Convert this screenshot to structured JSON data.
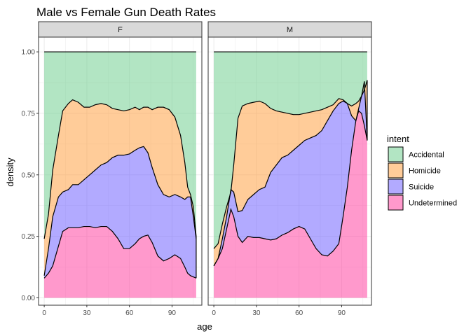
{
  "chart_data": {
    "type": "area",
    "subtype": "filled-density-stacked",
    "title": "Male vs Female Gun Death Rates",
    "xlabel": "age",
    "ylabel": "density",
    "xlim": [
      -4,
      111
    ],
    "ylim": [
      -0.03,
      1.06
    ],
    "x_ticks": [
      0,
      30,
      60,
      90
    ],
    "y_ticks": [
      0,
      0.25,
      0.5,
      0.75,
      1.0
    ],
    "x_tick_labels": [
      "0",
      "30",
      "60",
      "90"
    ],
    "y_tick_labels": [
      "0.00",
      "0.25",
      "0.50",
      "0.75",
      "1.00"
    ],
    "legend": {
      "title": "intent",
      "position": "right",
      "entries": [
        "Accidental",
        "Homicide",
        "Suicide",
        "Undetermined"
      ]
    },
    "colors": {
      "Accidental": "#66cc88",
      "Homicide": "#ff9933",
      "Suicide": "#6655ff",
      "Undetermined": "#ff3399"
    },
    "facets": [
      {
        "label": "F",
        "x": [
          0,
          3,
          6,
          10,
          13,
          17,
          20,
          24,
          28,
          32,
          36,
          40,
          44,
          48,
          52,
          56,
          60,
          64,
          67,
          70,
          73,
          76,
          80,
          84,
          88,
          92,
          96,
          99,
          101,
          103,
          105,
          107
        ],
        "boundaries": {
          "Homicide": [
            0.24,
            0.34,
            0.52,
            0.66,
            0.76,
            0.79,
            0.805,
            0.795,
            0.775,
            0.775,
            0.785,
            0.79,
            0.785,
            0.77,
            0.765,
            0.76,
            0.765,
            0.775,
            0.765,
            0.775,
            0.775,
            0.765,
            0.775,
            0.775,
            0.765,
            0.735,
            0.66,
            0.55,
            0.45,
            0.42,
            0.37,
            0.25
          ],
          "Suicide": [
            0.09,
            0.2,
            0.33,
            0.41,
            0.43,
            0.44,
            0.46,
            0.46,
            0.48,
            0.5,
            0.52,
            0.54,
            0.55,
            0.57,
            0.58,
            0.58,
            0.585,
            0.6,
            0.61,
            0.615,
            0.59,
            0.53,
            0.46,
            0.42,
            0.41,
            0.42,
            0.41,
            0.4,
            0.41,
            0.41,
            0.33,
            0.24
          ],
          "Undetermined": [
            0.08,
            0.1,
            0.13,
            0.21,
            0.27,
            0.285,
            0.285,
            0.285,
            0.29,
            0.29,
            0.285,
            0.29,
            0.29,
            0.27,
            0.24,
            0.2,
            0.2,
            0.22,
            0.24,
            0.25,
            0.255,
            0.225,
            0.17,
            0.15,
            0.16,
            0.175,
            0.16,
            0.125,
            0.1,
            0.09,
            0.085,
            0.08
          ]
        }
      },
      {
        "label": "M",
        "x": [
          0,
          3,
          6,
          9,
          12,
          14,
          17,
          20,
          24,
          28,
          32,
          36,
          40,
          44,
          48,
          52,
          56,
          60,
          64,
          68,
          72,
          76,
          80,
          84,
          88,
          91,
          94,
          97,
          100,
          102,
          104,
          106,
          108
        ],
        "boundaries": {
          "Homicide": [
            0.2,
            0.22,
            0.3,
            0.37,
            0.43,
            0.54,
            0.73,
            0.78,
            0.79,
            0.795,
            0.8,
            0.79,
            0.77,
            0.76,
            0.755,
            0.75,
            0.745,
            0.745,
            0.75,
            0.755,
            0.76,
            0.765,
            0.775,
            0.785,
            0.81,
            0.805,
            0.79,
            0.78,
            0.79,
            0.8,
            0.82,
            0.845,
            0.885
          ],
          "Suicide": [
            0.13,
            0.16,
            0.24,
            0.33,
            0.44,
            0.43,
            0.35,
            0.355,
            0.4,
            0.42,
            0.44,
            0.45,
            0.51,
            0.54,
            0.57,
            0.58,
            0.6,
            0.62,
            0.64,
            0.65,
            0.66,
            0.68,
            0.72,
            0.76,
            0.79,
            0.8,
            0.79,
            0.74,
            0.72,
            0.77,
            0.82,
            0.88,
            0.64
          ],
          "Undetermined": [
            0.13,
            0.16,
            0.2,
            0.28,
            0.36,
            0.33,
            0.25,
            0.225,
            0.25,
            0.245,
            0.245,
            0.24,
            0.235,
            0.24,
            0.255,
            0.265,
            0.28,
            0.29,
            0.28,
            0.24,
            0.2,
            0.175,
            0.17,
            0.19,
            0.22,
            0.33,
            0.45,
            0.6,
            0.72,
            0.76,
            0.75,
            0.7,
            0.64
          ]
        }
      }
    ]
  }
}
